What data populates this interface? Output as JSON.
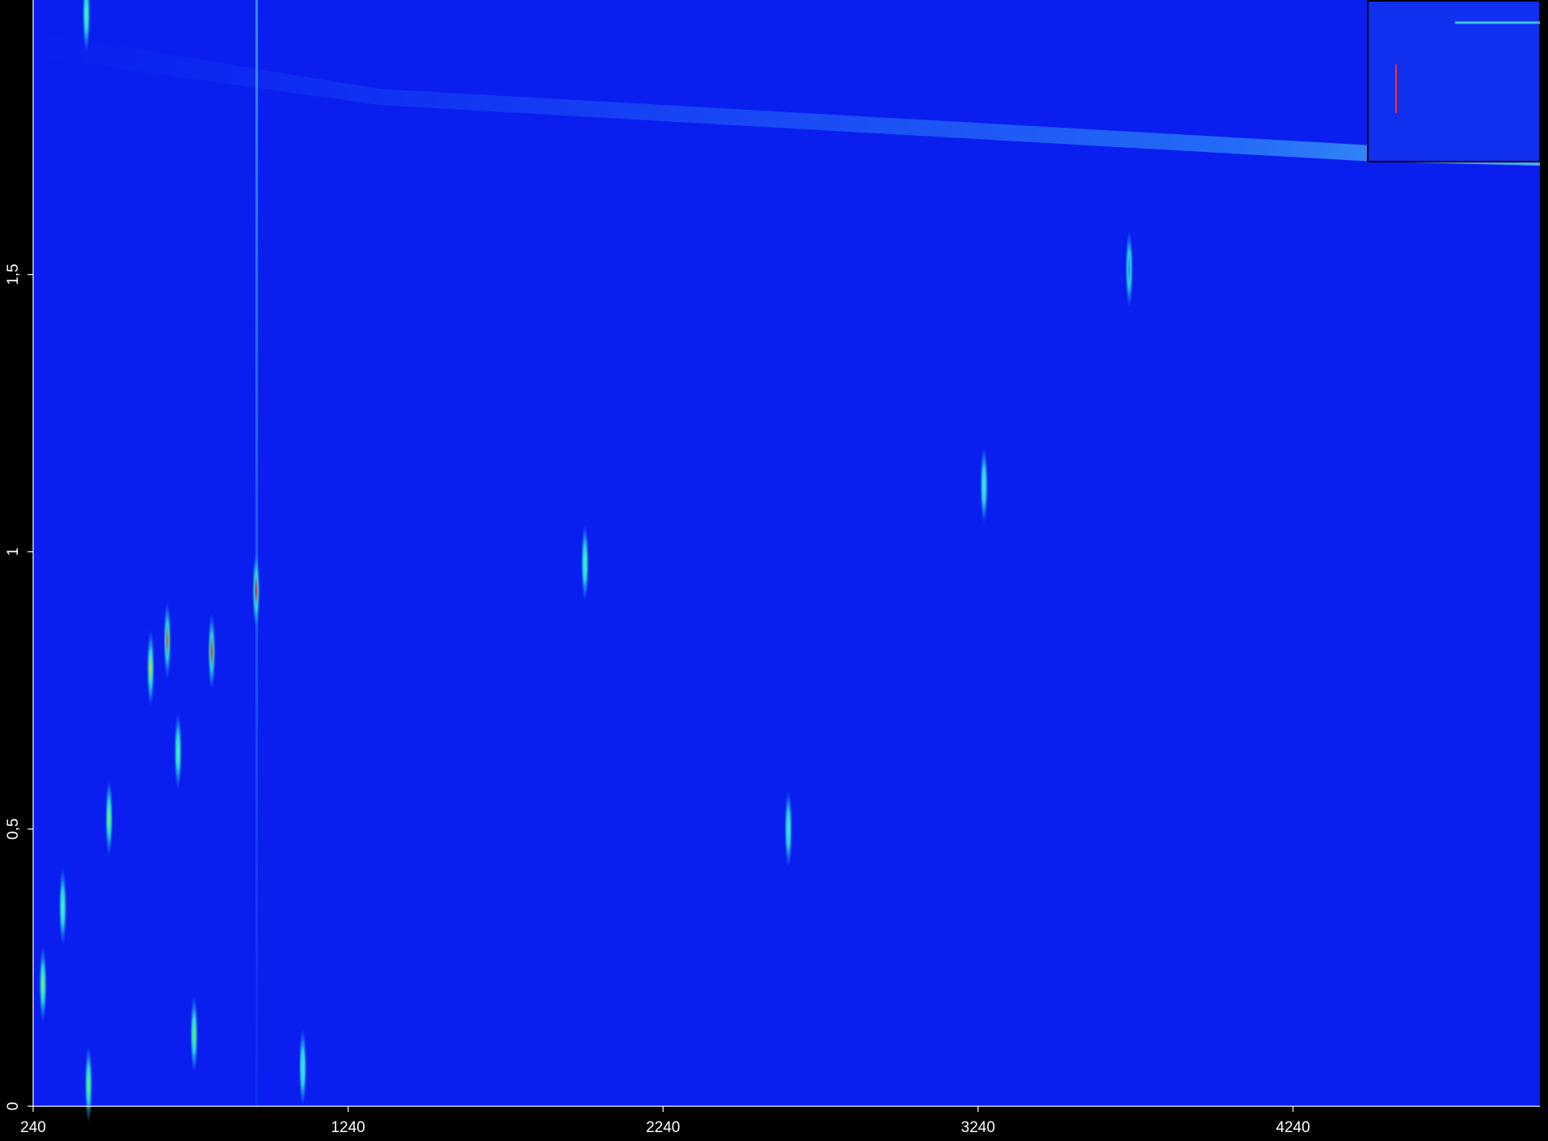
{
  "chart_data": {
    "type": "heatmap",
    "x": [
      948,
      807,
      666,
      613,
      1992,
      3259,
      481,
      271,
      334,
      416,
      751,
      700,
      2638,
      409,
      3720,
      1096
    ],
    "values": [
      0.93,
      0.82,
      0.84,
      0.79,
      0.98,
      1.12,
      0.52,
      0.22,
      0.36,
      0.04,
      0.13,
      0.64,
      0.5,
      1.97,
      1.51,
      0.07
    ],
    "colors": [
      "#ff0000",
      "#ff2000",
      "#ff4000",
      "#ffd000",
      "#40ffb0",
      "#40e0ff",
      "#80ff40",
      "#80ff40",
      "#40ffc0",
      "#60ff40",
      "#60ff40",
      "#40ffb0",
      "#40e0ff",
      "#40ffb0",
      "#2080ff",
      "#40e0ff"
    ],
    "color": "#0a1ef0",
    "xlim": [
      240,
      5024
    ],
    "ylim": [
      0,
      1.995
    ],
    "xticks": [
      240,
      1240,
      2240,
      3240,
      4240
    ],
    "yticks": [
      0,
      {
        "value": 0.5,
        "label": "0,5"
      },
      1,
      {
        "value": 1.5,
        "label": "1,5"
      }
    ]
  }
}
